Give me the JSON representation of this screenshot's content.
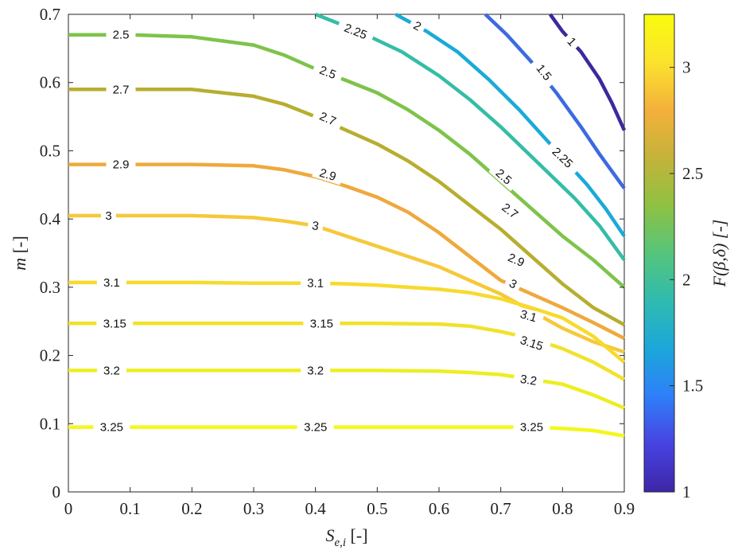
{
  "chart_data": {
    "type": "contour",
    "xlabel": "S",
    "xlabel_sub": "e,i",
    "xlabel_unit": " [-]",
    "ylabel": "m",
    "ylabel_unit": " [-]",
    "colorbar_label": "F(β,δ) [-]",
    "xlim": [
      0,
      0.9
    ],
    "ylim": [
      0,
      0.7
    ],
    "xticks": [
      "0",
      "0.1",
      "0.2",
      "0.3",
      "0.4",
      "0.5",
      "0.6",
      "0.7",
      "0.8",
      "0.9"
    ],
    "yticks": [
      "0",
      "0.1",
      "0.2",
      "0.3",
      "0.4",
      "0.5",
      "0.6",
      "0.7"
    ],
    "colorbar_range": [
      1,
      3.25
    ],
    "colorbar_ticks": [
      "1",
      "1.5",
      "2",
      "2.5",
      "3"
    ],
    "colormap": [
      "#3e26a8",
      "#4743e0",
      "#2f7ff9",
      "#1ba7d9",
      "#2fbbb0",
      "#55c57b",
      "#8fc142",
      "#c5b33a",
      "#f4b03b",
      "#fbe32c",
      "#f9fb0e"
    ],
    "contours": [
      {
        "level": "1",
        "color": "#3b2a9c",
        "points": [
          [
            0.78,
            0.7
          ],
          [
            0.8,
            0.675
          ],
          [
            0.83,
            0.645
          ],
          [
            0.86,
            0.605
          ],
          [
            0.88,
            0.57
          ],
          [
            0.9,
            0.53
          ]
        ],
        "labels": [
          [
            0.815,
            0.66
          ]
        ]
      },
      {
        "level": "1.5",
        "color": "#3d6ae0",
        "points": [
          [
            0.675,
            0.7
          ],
          [
            0.71,
            0.67
          ],
          [
            0.75,
            0.63
          ],
          [
            0.79,
            0.585
          ],
          [
            0.83,
            0.535
          ],
          [
            0.86,
            0.495
          ],
          [
            0.9,
            0.445
          ]
        ],
        "labels": [
          [
            0.77,
            0.615
          ]
        ]
      },
      {
        "level": "2",
        "color": "#1aaad8",
        "points": [
          [
            0.53,
            0.7
          ],
          [
            0.58,
            0.675
          ],
          [
            0.63,
            0.645
          ],
          [
            0.68,
            0.605
          ],
          [
            0.73,
            0.56
          ],
          [
            0.78,
            0.51
          ],
          [
            0.81,
            0.48
          ],
          [
            0.84,
            0.45
          ],
          [
            0.87,
            0.415
          ],
          [
            0.9,
            0.375
          ]
        ],
        "labels": [
          [
            0.565,
            0.683
          ],
          [
            0.815,
            0.478
          ]
        ]
      },
      {
        "level": "2.25",
        "color": "#35bda6",
        "points": [
          [
            0.4,
            0.7
          ],
          [
            0.47,
            0.675
          ],
          [
            0.54,
            0.645
          ],
          [
            0.6,
            0.61
          ],
          [
            0.65,
            0.575
          ],
          [
            0.7,
            0.535
          ],
          [
            0.74,
            0.5
          ],
          [
            0.78,
            0.465
          ],
          [
            0.82,
            0.43
          ],
          [
            0.86,
            0.39
          ],
          [
            0.9,
            0.34
          ]
        ],
        "labels": [
          [
            0.465,
            0.675
          ],
          [
            0.8,
            0.49
          ]
        ]
      },
      {
        "level": "2.5",
        "color": "#7ec34a",
        "points": [
          [
            0.0,
            0.67
          ],
          [
            0.1,
            0.67
          ],
          [
            0.2,
            0.667
          ],
          [
            0.3,
            0.655
          ],
          [
            0.35,
            0.64
          ],
          [
            0.4,
            0.62
          ],
          [
            0.45,
            0.603
          ],
          [
            0.5,
            0.585
          ],
          [
            0.55,
            0.56
          ],
          [
            0.6,
            0.53
          ],
          [
            0.65,
            0.495
          ],
          [
            0.7,
            0.455
          ],
          [
            0.75,
            0.415
          ],
          [
            0.8,
            0.375
          ],
          [
            0.85,
            0.34
          ],
          [
            0.9,
            0.3
          ]
        ],
        "labels": [
          [
            0.085,
            0.67
          ],
          [
            0.42,
            0.615
          ],
          [
            0.705,
            0.462
          ]
        ]
      },
      {
        "level": "2.7",
        "color": "#b7ae30",
        "points": [
          [
            0.0,
            0.59
          ],
          [
            0.1,
            0.59
          ],
          [
            0.2,
            0.59
          ],
          [
            0.3,
            0.58
          ],
          [
            0.35,
            0.568
          ],
          [
            0.4,
            0.55
          ],
          [
            0.45,
            0.53
          ],
          [
            0.5,
            0.51
          ],
          [
            0.55,
            0.485
          ],
          [
            0.6,
            0.455
          ],
          [
            0.65,
            0.42
          ],
          [
            0.7,
            0.385
          ],
          [
            0.75,
            0.345
          ],
          [
            0.8,
            0.305
          ],
          [
            0.85,
            0.27
          ],
          [
            0.9,
            0.245
          ]
        ],
        "labels": [
          [
            0.085,
            0.59
          ],
          [
            0.42,
            0.547
          ],
          [
            0.715,
            0.412
          ]
        ]
      },
      {
        "level": "2.9",
        "color": "#eea93d",
        "points": [
          [
            0.0,
            0.48
          ],
          [
            0.1,
            0.48
          ],
          [
            0.2,
            0.48
          ],
          [
            0.3,
            0.478
          ],
          [
            0.35,
            0.472
          ],
          [
            0.4,
            0.462
          ],
          [
            0.45,
            0.448
          ],
          [
            0.5,
            0.432
          ],
          [
            0.55,
            0.41
          ],
          [
            0.6,
            0.38
          ],
          [
            0.65,
            0.345
          ],
          [
            0.7,
            0.31
          ],
          [
            0.75,
            0.29
          ],
          [
            0.8,
            0.27
          ],
          [
            0.85,
            0.248
          ],
          [
            0.9,
            0.225
          ]
        ],
        "labels": [
          [
            0.085,
            0.48
          ],
          [
            0.42,
            0.465
          ],
          [
            0.725,
            0.34
          ]
        ]
      },
      {
        "level": "3",
        "color": "#f6c83a",
        "points": [
          [
            0.0,
            0.405
          ],
          [
            0.1,
            0.405
          ],
          [
            0.2,
            0.405
          ],
          [
            0.3,
            0.402
          ],
          [
            0.35,
            0.397
          ],
          [
            0.4,
            0.39
          ],
          [
            0.45,
            0.375
          ],
          [
            0.5,
            0.36
          ],
          [
            0.55,
            0.345
          ],
          [
            0.6,
            0.33
          ],
          [
            0.65,
            0.31
          ],
          [
            0.7,
            0.29
          ],
          [
            0.75,
            0.265
          ],
          [
            0.8,
            0.24
          ],
          [
            0.85,
            0.22
          ],
          [
            0.9,
            0.205
          ]
        ],
        "labels": [
          [
            0.065,
            0.405
          ],
          [
            0.4,
            0.39
          ],
          [
            0.72,
            0.305
          ]
        ]
      },
      {
        "level": "3.1",
        "color": "#f7da2d",
        "points": [
          [
            0.0,
            0.307
          ],
          [
            0.2,
            0.307
          ],
          [
            0.3,
            0.306
          ],
          [
            0.4,
            0.306
          ],
          [
            0.45,
            0.305
          ],
          [
            0.5,
            0.303
          ],
          [
            0.55,
            0.3
          ],
          [
            0.6,
            0.297
          ],
          [
            0.65,
            0.292
          ],
          [
            0.7,
            0.283
          ],
          [
            0.75,
            0.27
          ],
          [
            0.8,
            0.255
          ],
          [
            0.85,
            0.228
          ],
          [
            0.9,
            0.19
          ]
        ],
        "labels": [
          [
            0.07,
            0.307
          ],
          [
            0.4,
            0.306
          ],
          [
            0.745,
            0.258
          ]
        ]
      },
      {
        "level": "3.15",
        "color": "#f0e22a",
        "points": [
          [
            0.0,
            0.247
          ],
          [
            0.2,
            0.247
          ],
          [
            0.4,
            0.247
          ],
          [
            0.5,
            0.247
          ],
          [
            0.6,
            0.246
          ],
          [
            0.65,
            0.243
          ],
          [
            0.7,
            0.235
          ],
          [
            0.75,
            0.225
          ],
          [
            0.8,
            0.21
          ],
          [
            0.85,
            0.19
          ],
          [
            0.9,
            0.165
          ]
        ],
        "labels": [
          [
            0.075,
            0.247
          ],
          [
            0.41,
            0.247
          ],
          [
            0.75,
            0.218
          ]
        ]
      },
      {
        "level": "3.2",
        "color": "#ecee22",
        "points": [
          [
            0.0,
            0.178
          ],
          [
            0.2,
            0.178
          ],
          [
            0.4,
            0.178
          ],
          [
            0.5,
            0.178
          ],
          [
            0.6,
            0.177
          ],
          [
            0.65,
            0.175
          ],
          [
            0.7,
            0.172
          ],
          [
            0.75,
            0.165
          ],
          [
            0.8,
            0.158
          ],
          [
            0.85,
            0.142
          ],
          [
            0.9,
            0.123
          ]
        ],
        "labels": [
          [
            0.07,
            0.178
          ],
          [
            0.4,
            0.178
          ],
          [
            0.745,
            0.164
          ]
        ]
      },
      {
        "level": "3.25",
        "color": "#f4f71a",
        "points": [
          [
            0.0,
            0.095
          ],
          [
            0.2,
            0.095
          ],
          [
            0.4,
            0.095
          ],
          [
            0.6,
            0.095
          ],
          [
            0.7,
            0.095
          ],
          [
            0.75,
            0.095
          ],
          [
            0.8,
            0.093
          ],
          [
            0.85,
            0.09
          ],
          [
            0.9,
            0.082
          ]
        ],
        "labels": [
          [
            0.07,
            0.095
          ],
          [
            0.4,
            0.095
          ],
          [
            0.75,
            0.095
          ]
        ]
      }
    ]
  }
}
